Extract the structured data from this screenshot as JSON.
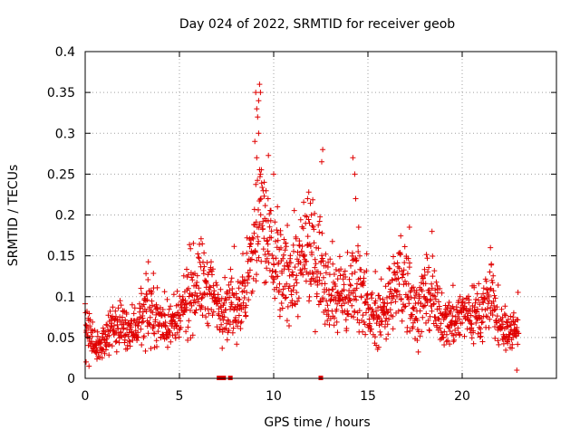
{
  "chart_data": {
    "type": "scatter",
    "title": "Day 024 of 2022, SRMTID for receiver geob",
    "xlabel": "GPS time / hours",
    "ylabel": "SRMTID / TECUs",
    "xlim": [
      0,
      25
    ],
    "ylim": [
      0,
      0.4
    ],
    "x_ticks": [
      0,
      5,
      10,
      15,
      20
    ],
    "x_tick_labels": [
      "0",
      "5",
      "10",
      "15",
      "20"
    ],
    "y_ticks": [
      0,
      0.05,
      0.1,
      0.15,
      0.2,
      0.25,
      0.3,
      0.35,
      0.4
    ],
    "y_tick_labels": [
      "0",
      "0.05",
      "0.1",
      "0.15",
      "0.2",
      "0.25",
      "0.3",
      "0.35",
      "0.4"
    ],
    "grid": true,
    "marker": "+",
    "point_color": "#e00000",
    "gap_marker_hours": [
      7.1,
      7.25,
      7.35,
      7.7,
      12.5
    ],
    "series": [
      {
        "name": "SRMTID",
        "profile": [
          [
            0.0,
            0.08
          ],
          [
            0.3,
            0.05
          ],
          [
            0.6,
            0.04
          ],
          [
            1.0,
            0.045
          ],
          [
            1.5,
            0.06
          ],
          [
            2.0,
            0.065
          ],
          [
            2.5,
            0.06
          ],
          [
            3.0,
            0.075
          ],
          [
            3.5,
            0.08
          ],
          [
            4.0,
            0.07
          ],
          [
            4.5,
            0.065
          ],
          [
            5.0,
            0.07
          ],
          [
            5.5,
            0.1
          ],
          [
            6.0,
            0.12
          ],
          [
            6.5,
            0.11
          ],
          [
            7.0,
            0.09
          ],
          [
            7.5,
            0.09
          ],
          [
            8.0,
            0.09
          ],
          [
            8.5,
            0.1
          ],
          [
            9.0,
            0.17
          ],
          [
            9.3,
            0.2
          ],
          [
            9.6,
            0.17
          ],
          [
            10.0,
            0.15
          ],
          [
            10.5,
            0.12
          ],
          [
            11.0,
            0.13
          ],
          [
            11.5,
            0.14
          ],
          [
            12.0,
            0.15
          ],
          [
            12.5,
            0.14
          ],
          [
            13.0,
            0.11
          ],
          [
            13.5,
            0.1
          ],
          [
            14.0,
            0.1
          ],
          [
            14.5,
            0.13
          ],
          [
            15.0,
            0.08
          ],
          [
            15.5,
            0.07
          ],
          [
            16.0,
            0.09
          ],
          [
            16.5,
            0.11
          ],
          [
            17.0,
            0.12
          ],
          [
            17.5,
            0.08
          ],
          [
            18.0,
            0.1
          ],
          [
            18.5,
            0.09
          ],
          [
            19.0,
            0.07
          ],
          [
            19.5,
            0.07
          ],
          [
            20.0,
            0.08
          ],
          [
            20.5,
            0.08
          ],
          [
            21.0,
            0.08
          ],
          [
            21.5,
            0.1
          ],
          [
            22.0,
            0.06
          ],
          [
            22.5,
            0.06
          ],
          [
            23.0,
            0.06
          ]
        ],
        "spikes": [
          [
            9.05,
            0.35
          ],
          [
            9.1,
            0.33
          ],
          [
            9.15,
            0.32
          ],
          [
            9.2,
            0.34
          ],
          [
            9.25,
            0.36
          ],
          [
            9.3,
            0.35
          ],
          [
            9.0,
            0.29
          ],
          [
            9.1,
            0.27
          ],
          [
            9.2,
            0.3
          ],
          [
            9.3,
            0.25
          ],
          [
            9.5,
            0.24
          ],
          [
            9.7,
            0.22
          ],
          [
            10.0,
            0.25
          ],
          [
            10.2,
            0.21
          ],
          [
            12.6,
            0.28
          ],
          [
            12.55,
            0.265
          ],
          [
            14.2,
            0.27
          ],
          [
            14.3,
            0.25
          ],
          [
            14.35,
            0.22
          ],
          [
            12.0,
            0.2
          ],
          [
            11.8,
            0.22
          ],
          [
            11.9,
            0.19
          ],
          [
            17.2,
            0.185
          ],
          [
            18.4,
            0.18
          ],
          [
            21.5,
            0.16
          ],
          [
            0.05,
            0.02
          ],
          [
            0.2,
            0.015
          ],
          [
            22.9,
            0.01
          ]
        ],
        "n_points": 1600,
        "x_start": 0.0,
        "x_end": 23.0
      }
    ]
  }
}
